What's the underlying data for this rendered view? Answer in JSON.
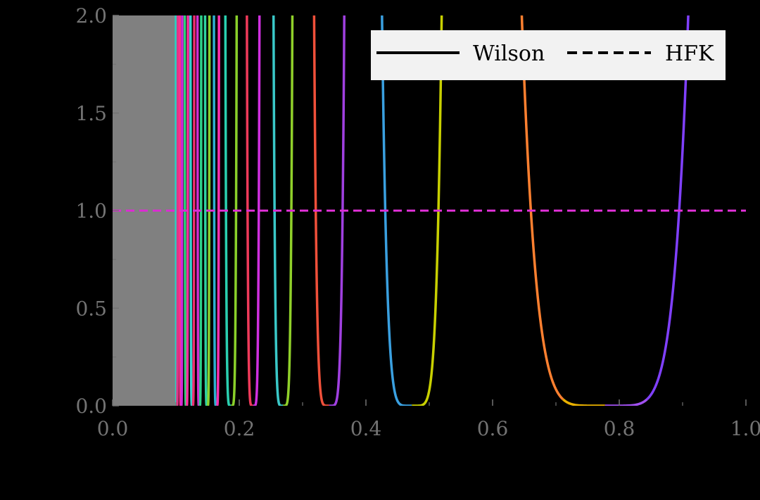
{
  "chart_data": {
    "type": "line",
    "title": "",
    "xlabel": "",
    "ylabel": "",
    "xlim": [
      0.0,
      1.0
    ],
    "ylim": [
      0.0,
      2.0
    ],
    "grid": false,
    "legend_position": "top-right",
    "shaded_region": {
      "x": [
        0.0,
        0.1
      ],
      "color": "#808080"
    },
    "x_ticks": [
      "0.0",
      "0.2",
      "0.4",
      "0.6",
      "0.8",
      "1.0"
    ],
    "y_ticks": [
      "0.0",
      "0.5",
      "1.0",
      "1.5",
      "2.0"
    ],
    "legend": [
      {
        "label": "Wilson",
        "style": "solid"
      },
      {
        "label": "HFK",
        "style": "dashed"
      }
    ],
    "hfk_line": {
      "y": 1.0,
      "x": [
        0.0,
        1.0
      ],
      "color": "#d92fd0"
    },
    "wells": [
      {
        "left": 0.1,
        "right": 0.103,
        "colors": [
          "#2ad0c0",
          "#e03585"
        ]
      },
      {
        "left": 0.106,
        "right": 0.11,
        "colors": [
          "#ff2f8a",
          "#d02bd8"
        ]
      },
      {
        "left": 0.114,
        "right": 0.119,
        "colors": [
          "#2fd07a",
          "#ff2fa0"
        ]
      },
      {
        "left": 0.123,
        "right": 0.129,
        "colors": [
          "#3ad0d0",
          "#ee2f70"
        ]
      },
      {
        "left": 0.134,
        "right": 0.14,
        "colors": [
          "#d02fd0",
          "#2fd08a"
        ]
      },
      {
        "left": 0.146,
        "right": 0.153,
        "colors": [
          "#2fd0a0",
          "#8ad02f"
        ]
      },
      {
        "left": 0.16,
        "right": 0.168,
        "colors": [
          "#2fb0d0",
          "#ff2fb0"
        ]
      },
      {
        "left": 0.178,
        "right": 0.196,
        "colors": [
          "#2ad0b0",
          "#8ad02a"
        ]
      },
      {
        "left": 0.212,
        "right": 0.232,
        "colors": [
          "#f03a5a",
          "#d030e0"
        ]
      },
      {
        "left": 0.254,
        "right": 0.284,
        "colors": [
          "#3ac8c8",
          "#90d02a"
        ]
      },
      {
        "left": 0.318,
        "right": 0.366,
        "colors": [
          "#f0503a",
          "#a040e0"
        ]
      },
      {
        "left": 0.425,
        "right": 0.52,
        "colors": [
          "#3aa0e0",
          "#c8d000"
        ]
      },
      {
        "left": 0.645,
        "right": 0.91,
        "colors": [
          "#ff8030",
          "#e8b000",
          "#a050f0",
          "#8040ff"
        ]
      }
    ]
  }
}
